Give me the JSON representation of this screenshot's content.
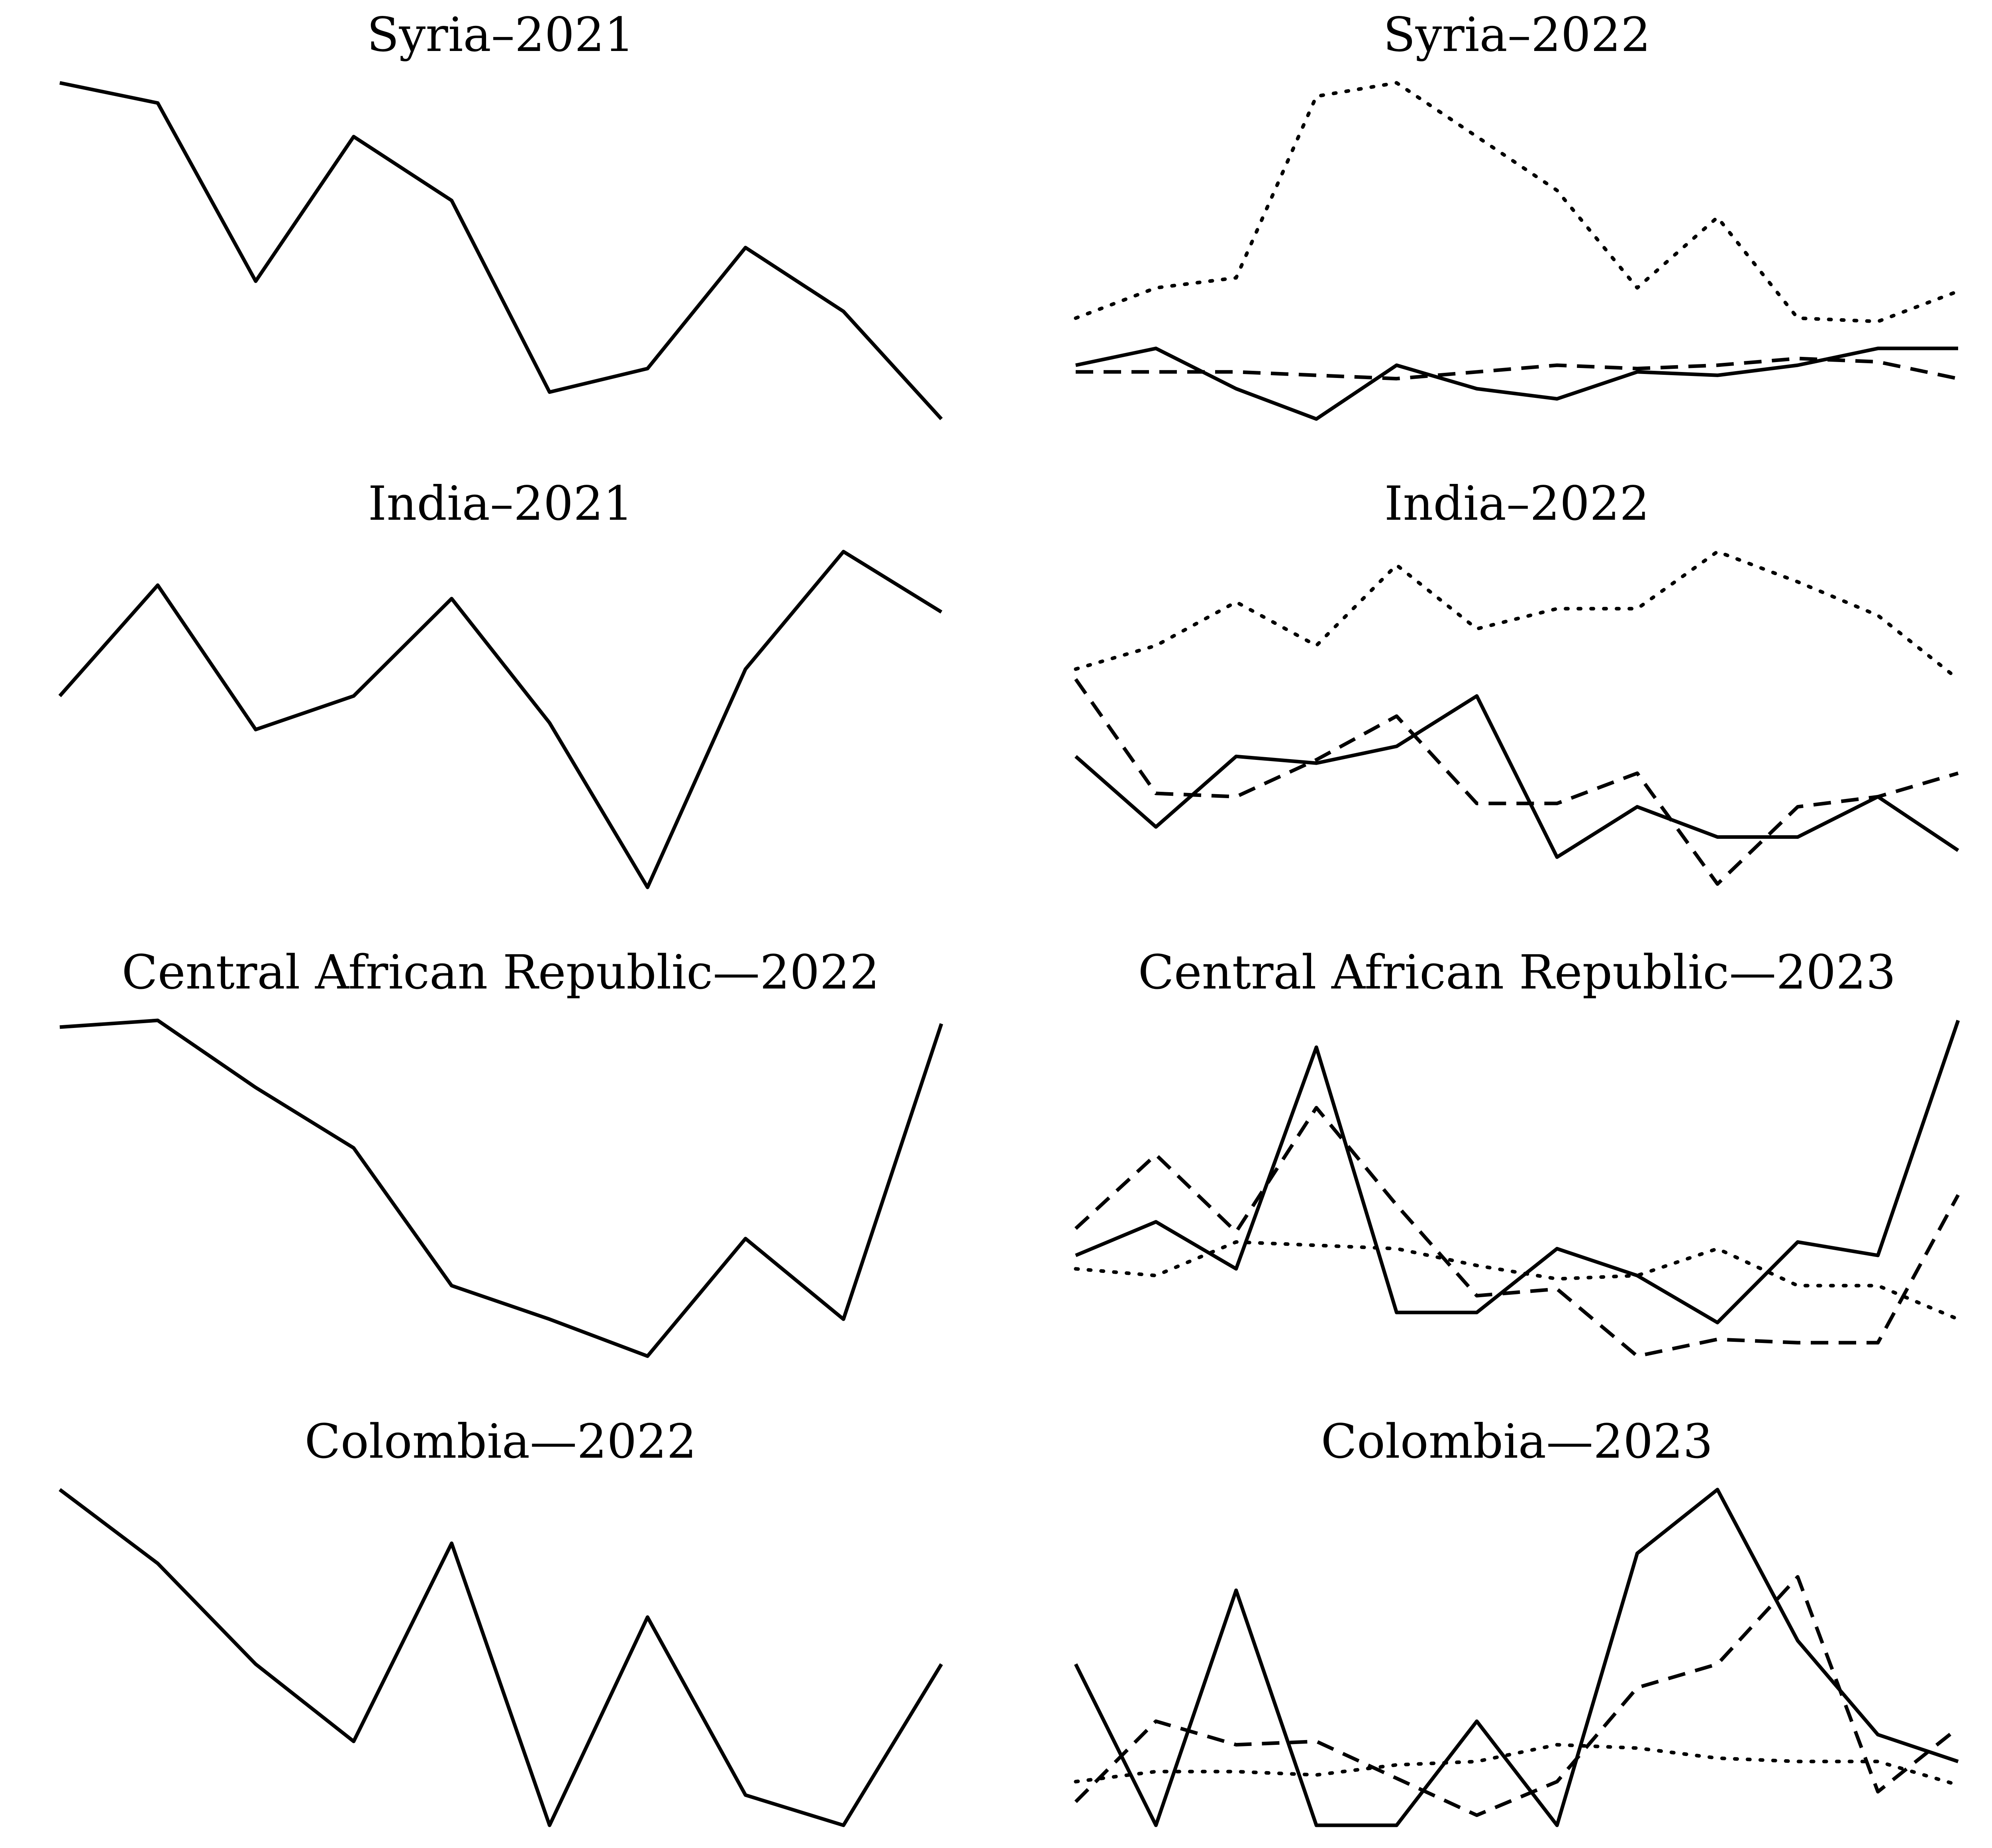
{
  "chart_data": [
    {
      "type": "line",
      "title": "Syria–2021",
      "x": [
        0,
        1,
        2,
        3,
        4,
        5,
        6,
        7,
        8,
        9
      ],
      "ylim": [
        0,
        100
      ],
      "series": [
        {
          "style": "solid",
          "values": [
            100,
            94,
            41,
            84,
            65,
            8,
            15,
            51,
            32,
            0
          ]
        }
      ]
    },
    {
      "type": "line",
      "title": "Syria–2022",
      "x": [
        0,
        1,
        2,
        3,
        4,
        5,
        6,
        7,
        8,
        9,
        10,
        11
      ],
      "ylim": [
        0,
        100
      ],
      "series": [
        {
          "style": "dotted",
          "values": [
            30,
            39,
            42,
            96,
            100,
            84,
            68,
            39,
            60,
            30,
            29,
            38
          ]
        },
        {
          "style": "solid",
          "values": [
            16,
            21,
            9,
            0,
            16,
            9,
            6,
            14,
            13,
            16,
            21,
            21
          ]
        },
        {
          "style": "dashed",
          "values": [
            14,
            14,
            14,
            13,
            12,
            14,
            16,
            15,
            16,
            18,
            17,
            12
          ]
        }
      ]
    },
    {
      "type": "line",
      "title": "India–2021",
      "x": [
        0,
        1,
        2,
        3,
        4,
        5,
        6,
        7,
        8,
        9
      ],
      "ylim": [
        0,
        100
      ],
      "series": [
        {
          "style": "solid",
          "values": [
            57,
            90,
            47,
            57,
            86,
            49,
            0,
            65,
            100,
            82
          ]
        }
      ]
    },
    {
      "type": "line",
      "title": "India–2022",
      "x": [
        0,
        1,
        2,
        3,
        4,
        5,
        6,
        7,
        8,
        9,
        10,
        11
      ],
      "ylim": [
        0,
        100
      ],
      "series": [
        {
          "style": "dotted",
          "values": [
            65,
            72,
            85,
            72,
            96,
            77,
            83,
            83,
            100,
            91,
            81,
            62
          ]
        },
        {
          "style": "solid",
          "values": [
            39,
            18,
            39,
            37,
            42,
            57,
            9,
            24,
            15,
            15,
            27,
            11
          ]
        },
        {
          "style": "dashed",
          "values": [
            62,
            28,
            27,
            38,
            51,
            25,
            25,
            34,
            1,
            24,
            27,
            34
          ]
        }
      ]
    },
    {
      "type": "line",
      "title": "Central African Republic—2022",
      "x": [
        0,
        1,
        2,
        3,
        4,
        5,
        6,
        7,
        8,
        9
      ],
      "ylim": [
        0,
        100
      ],
      "series": [
        {
          "style": "solid",
          "values": [
            98,
            100,
            80,
            62,
            21,
            11,
            0,
            35,
            11,
            99
          ]
        }
      ]
    },
    {
      "type": "line",
      "title": "Central African Republic—2023",
      "x": [
        0,
        1,
        2,
        3,
        4,
        5,
        6,
        7,
        8,
        9,
        10,
        11
      ],
      "ylim": [
        0,
        100
      ],
      "series": [
        {
          "style": "solid",
          "values": [
            30,
            40,
            26,
            92,
            13,
            13,
            32,
            24,
            10,
            34,
            30,
            100
          ]
        },
        {
          "style": "dashed",
          "values": [
            38,
            60,
            37,
            74,
            45,
            18,
            20,
            0,
            5,
            4,
            4,
            48
          ]
        },
        {
          "style": "dotted",
          "values": [
            26,
            24,
            34,
            33,
            32,
            27,
            23,
            24,
            32,
            21,
            21,
            11
          ]
        }
      ]
    },
    {
      "type": "line",
      "title": "Colombia—2022",
      "x": [
        0,
        1,
        2,
        3,
        4,
        5,
        6,
        7,
        8,
        9
      ],
      "ylim": [
        0,
        100
      ],
      "series": [
        {
          "style": "solid",
          "values": [
            100,
            78,
            48,
            25,
            84,
            0,
            62,
            9,
            0,
            48
          ]
        }
      ]
    },
    {
      "type": "line",
      "title": "Colombia—2023",
      "x": [
        0,
        1,
        2,
        3,
        4,
        5,
        6,
        7,
        8,
        9,
        10,
        11
      ],
      "ylim": [
        0,
        100
      ],
      "series": [
        {
          "style": "solid",
          "values": [
            48,
            0,
            70,
            0,
            0,
            31,
            0,
            81,
            100,
            55,
            27,
            19
          ]
        },
        {
          "style": "dashed",
          "values": [
            7,
            31,
            24,
            25,
            14,
            3,
            13,
            41,
            48,
            74,
            10,
            29
          ]
        },
        {
          "style": "dotted",
          "values": [
            13,
            16,
            16,
            15,
            18,
            19,
            24,
            23,
            20,
            19,
            19,
            12
          ]
        }
      ]
    }
  ]
}
